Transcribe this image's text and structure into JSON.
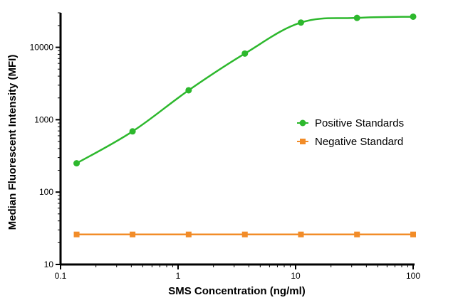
{
  "chart_data": {
    "type": "line",
    "xlabel": "SMS Concentration (ng/ml)",
    "ylabel": "Median Fluorescent Intensity (MFI)",
    "x_scale": "log",
    "y_scale": "log",
    "xlim": [
      0.1,
      100
    ],
    "ylim": [
      10,
      30000
    ],
    "x_ticks": [
      0.1,
      1,
      10,
      100
    ],
    "x_tick_labels": [
      "0.1",
      "1",
      "10",
      "100"
    ],
    "y_ticks": [
      10,
      100,
      1000,
      10000
    ],
    "y_tick_labels": [
      "10",
      "100",
      "1000",
      "10000"
    ],
    "legend_position": "right",
    "series": [
      {
        "name": "Positive Standards",
        "color": "#2db82d",
        "marker": "circle",
        "fit": "sigmoidal curve",
        "x": [
          0.137,
          0.41,
          1.23,
          3.7,
          11.1,
          33.3,
          100
        ],
        "y": [
          250,
          690,
          2550,
          8200,
          22000,
          25500,
          26500
        ]
      },
      {
        "name": "Negative Standard",
        "color": "#f28c28",
        "marker": "square",
        "x": [
          0.137,
          0.41,
          1.23,
          3.7,
          11.1,
          33.3,
          100
        ],
        "y": [
          26,
          26,
          26,
          26,
          26,
          26,
          26
        ]
      }
    ]
  }
}
